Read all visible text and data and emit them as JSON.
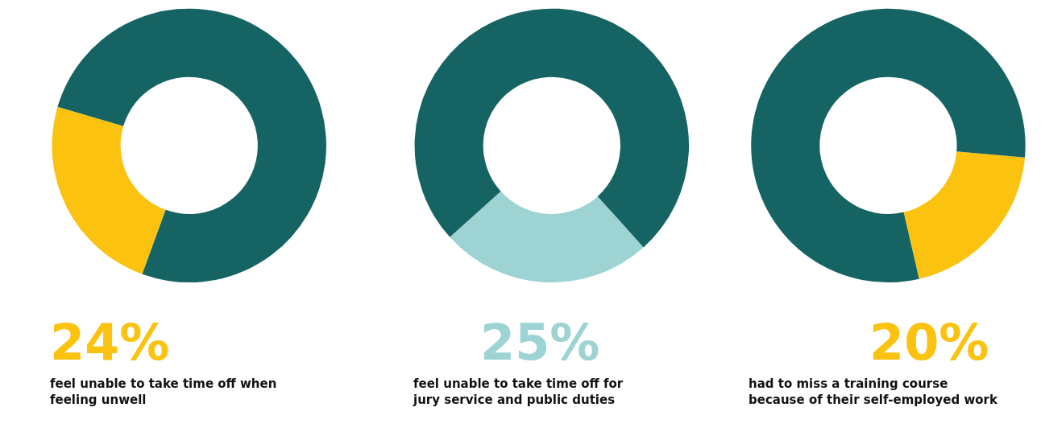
{
  "chart_data": [
    {
      "type": "donut",
      "categories": [
        null,
        null
      ],
      "values": [
        24,
        76
      ],
      "colors": [
        "#fbc30f",
        "#156463"
      ],
      "value_labels": [
        "24%",
        null
      ],
      "annotations": [
        "feel unable to take time off when feeling unwell"
      ]
    },
    {
      "type": "donut",
      "categories": [
        null,
        null
      ],
      "values": [
        25,
        75
      ],
      "colors": [
        "#9dd3d3",
        "#156463"
      ],
      "value_labels": [
        "25%",
        null
      ],
      "annotations": [
        "feel unable to take time off for jury service and public duties"
      ]
    },
    {
      "type": "donut",
      "categories": [
        null,
        null
      ],
      "values": [
        20,
        80
      ],
      "colors": [
        "#fbc30f",
        "#156463"
      ],
      "value_labels": [
        "20%",
        null
      ],
      "annotations": [
        "had to miss a training course because of their self-employed work"
      ]
    }
  ]
}
